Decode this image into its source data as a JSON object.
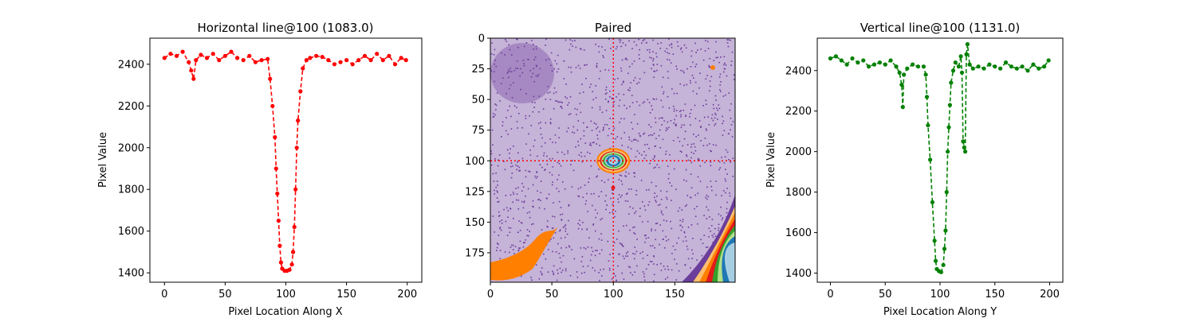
{
  "chart_data": [
    {
      "type": "line",
      "title": "Horizontal line@100 (1083.0)",
      "xlabel": "Pixel Location Along X",
      "ylabel": "Pixel Value",
      "xlim": [
        -12,
        212
      ],
      "ylim": [
        1355,
        2525
      ],
      "xticks": [
        0,
        50,
        100,
        150,
        200
      ],
      "yticks": [
        1400,
        1600,
        1800,
        2000,
        2200,
        2400
      ],
      "color": "#ff0000",
      "line_style": "dashed",
      "marker": "circle",
      "grid": false,
      "series": [
        {
          "values": [
            {
              "x": 0,
              "y": 2430
            },
            {
              "x": 5,
              "y": 2450
            },
            {
              "x": 10,
              "y": 2440
            },
            {
              "x": 15,
              "y": 2460
            },
            {
              "x": 20,
              "y": 2410
            },
            {
              "x": 22,
              "y": 2370
            },
            {
              "x": 24,
              "y": 2330
            },
            {
              "x": 26,
              "y": 2420
            },
            {
              "x": 30,
              "y": 2445
            },
            {
              "x": 35,
              "y": 2430
            },
            {
              "x": 40,
              "y": 2450
            },
            {
              "x": 45,
              "y": 2420
            },
            {
              "x": 50,
              "y": 2440
            },
            {
              "x": 55,
              "y": 2460
            },
            {
              "x": 60,
              "y": 2430
            },
            {
              "x": 65,
              "y": 2420
            },
            {
              "x": 70,
              "y": 2440
            },
            {
              "x": 75,
              "y": 2410
            },
            {
              "x": 80,
              "y": 2420
            },
            {
              "x": 85,
              "y": 2425
            },
            {
              "x": 87,
              "y": 2330
            },
            {
              "x": 89,
              "y": 2200
            },
            {
              "x": 91,
              "y": 2050
            },
            {
              "x": 92,
              "y": 1900
            },
            {
              "x": 93,
              "y": 1780
            },
            {
              "x": 94,
              "y": 1650
            },
            {
              "x": 95,
              "y": 1530
            },
            {
              "x": 96,
              "y": 1450
            },
            {
              "x": 97,
              "y": 1420
            },
            {
              "x": 99,
              "y": 1410
            },
            {
              "x": 101,
              "y": 1410
            },
            {
              "x": 103,
              "y": 1415
            },
            {
              "x": 105,
              "y": 1440
            },
            {
              "x": 106,
              "y": 1500
            },
            {
              "x": 107,
              "y": 1620
            },
            {
              "x": 108,
              "y": 1800
            },
            {
              "x": 109,
              "y": 2000
            },
            {
              "x": 110,
              "y": 2130
            },
            {
              "x": 112,
              "y": 2270
            },
            {
              "x": 114,
              "y": 2380
            },
            {
              "x": 117,
              "y": 2420
            },
            {
              "x": 120,
              "y": 2430
            },
            {
              "x": 125,
              "y": 2440
            },
            {
              "x": 130,
              "y": 2435
            },
            {
              "x": 135,
              "y": 2420
            },
            {
              "x": 140,
              "y": 2400
            },
            {
              "x": 145,
              "y": 2410
            },
            {
              "x": 150,
              "y": 2420
            },
            {
              "x": 155,
              "y": 2400
            },
            {
              "x": 160,
              "y": 2420
            },
            {
              "x": 165,
              "y": 2440
            },
            {
              "x": 170,
              "y": 2420
            },
            {
              "x": 175,
              "y": 2450
            },
            {
              "x": 180,
              "y": 2420
            },
            {
              "x": 185,
              "y": 2440
            },
            {
              "x": 190,
              "y": 2400
            },
            {
              "x": 195,
              "y": 2430
            },
            {
              "x": 199,
              "y": 2420
            }
          ]
        }
      ]
    },
    {
      "type": "heatmap",
      "title": "Paired",
      "xlim": [
        0,
        199
      ],
      "ylim": [
        199,
        0
      ],
      "xticks": [
        0,
        50,
        100,
        150
      ],
      "yticks": [
        0,
        25,
        50,
        75,
        100,
        125,
        150,
        175
      ],
      "crosshair": {
        "x": 100,
        "y": 100,
        "color": "#ff0000",
        "style": "dotted"
      },
      "colormap": "Paired",
      "colors": {
        "background": "#c6b3d8",
        "dark_purple": "#6a3d9a",
        "orange": "#ff7f00",
        "light_orange": "#fdbf6f",
        "red": "#e31a1c",
        "green": "#33a02c",
        "light_green": "#b2df8a",
        "blue": "#1f78b4",
        "light_blue": "#a6cee3"
      }
    },
    {
      "type": "line",
      "title": "Vertical line@100 (1131.0)",
      "xlabel": "Pixel Location Along Y",
      "ylabel": "Pixel Value",
      "xlim": [
        -12,
        212
      ],
      "ylim": [
        1355,
        2560
      ],
      "xticks": [
        0,
        50,
        100,
        150,
        200
      ],
      "yticks": [
        1400,
        1600,
        1800,
        2000,
        2200,
        2400
      ],
      "color": "#008000",
      "line_style": "dashed",
      "marker": "circle",
      "grid": false,
      "series": [
        {
          "values": [
            {
              "x": 0,
              "y": 2460
            },
            {
              "x": 5,
              "y": 2470
            },
            {
              "x": 10,
              "y": 2450
            },
            {
              "x": 15,
              "y": 2430
            },
            {
              "x": 20,
              "y": 2460
            },
            {
              "x": 25,
              "y": 2440
            },
            {
              "x": 30,
              "y": 2450
            },
            {
              "x": 35,
              "y": 2420
            },
            {
              "x": 40,
              "y": 2430
            },
            {
              "x": 45,
              "y": 2440
            },
            {
              "x": 50,
              "y": 2430
            },
            {
              "x": 55,
              "y": 2450
            },
            {
              "x": 60,
              "y": 2420
            },
            {
              "x": 63,
              "y": 2390
            },
            {
              "x": 65,
              "y": 2330
            },
            {
              "x": 66,
              "y": 2220
            },
            {
              "x": 67,
              "y": 2380
            },
            {
              "x": 70,
              "y": 2410
            },
            {
              "x": 75,
              "y": 2430
            },
            {
              "x": 80,
              "y": 2420
            },
            {
              "x": 85,
              "y": 2420
            },
            {
              "x": 87,
              "y": 2380
            },
            {
              "x": 88,
              "y": 2270
            },
            {
              "x": 89,
              "y": 2130
            },
            {
              "x": 91,
              "y": 1960
            },
            {
              "x": 93,
              "y": 1750
            },
            {
              "x": 95,
              "y": 1560
            },
            {
              "x": 96,
              "y": 1460
            },
            {
              "x": 97,
              "y": 1420
            },
            {
              "x": 99,
              "y": 1410
            },
            {
              "x": 101,
              "y": 1405
            },
            {
              "x": 103,
              "y": 1440
            },
            {
              "x": 104,
              "y": 1520
            },
            {
              "x": 105,
              "y": 1610
            },
            {
              "x": 106,
              "y": 1800
            },
            {
              "x": 107,
              "y": 2000
            },
            {
              "x": 108,
              "y": 2120
            },
            {
              "x": 109,
              "y": 2230
            },
            {
              "x": 110,
              "y": 2340
            },
            {
              "x": 112,
              "y": 2400
            },
            {
              "x": 114,
              "y": 2440
            },
            {
              "x": 117,
              "y": 2420
            },
            {
              "x": 119,
              "y": 2470
            },
            {
              "x": 120,
              "y": 2390
            },
            {
              "x": 121,
              "y": 2050
            },
            {
              "x": 122,
              "y": 2020
            },
            {
              "x": 123,
              "y": 2000
            },
            {
              "x": 124,
              "y": 2480
            },
            {
              "x": 125,
              "y": 2530
            },
            {
              "x": 127,
              "y": 2430
            },
            {
              "x": 130,
              "y": 2410
            },
            {
              "x": 135,
              "y": 2420
            },
            {
              "x": 140,
              "y": 2410
            },
            {
              "x": 145,
              "y": 2430
            },
            {
              "x": 150,
              "y": 2420
            },
            {
              "x": 155,
              "y": 2410
            },
            {
              "x": 160,
              "y": 2440
            },
            {
              "x": 165,
              "y": 2420
            },
            {
              "x": 170,
              "y": 2410
            },
            {
              "x": 175,
              "y": 2420
            },
            {
              "x": 180,
              "y": 2400
            },
            {
              "x": 185,
              "y": 2430
            },
            {
              "x": 190,
              "y": 2410
            },
            {
              "x": 195,
              "y": 2420
            },
            {
              "x": 199,
              "y": 2450
            }
          ]
        }
      ]
    }
  ]
}
